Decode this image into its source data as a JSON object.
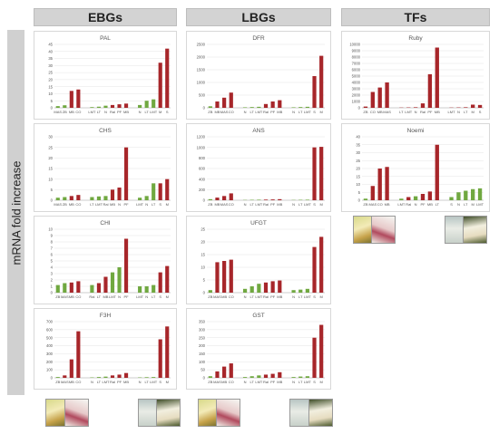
{
  "yaxis_label": "mRNA fold increase",
  "groups": [
    {
      "label": "EBGs"
    },
    {
      "label": "LBGs"
    },
    {
      "label": "TFs"
    }
  ],
  "flowers": [
    "rose-flower-yellow-icon",
    "rose-flower-pink-icon",
    "rose-flower-white-icon",
    "rose-flower-cream-icon"
  ],
  "colors": {
    "green": "#70a840",
    "red": "#a7262a",
    "axis": "#bfbfbf",
    "grid": "#e4e4e4",
    "text": "#555555"
  },
  "chart_data": [
    {
      "type": "bar",
      "title": "PAL",
      "ylim": [
        0,
        45
      ],
      "yticks": [
        0,
        5,
        10,
        15,
        20,
        25,
        30,
        35,
        40,
        45
      ],
      "categories": [
        "MAS",
        "ZB",
        "MB",
        "CO",
        "",
        "LMT",
        "LT",
        "N",
        "Ral",
        "PF",
        "MB",
        "",
        "N",
        "LT",
        "LMT",
        "M",
        "S"
      ],
      "values": [
        1.2,
        1.8,
        12,
        13,
        0,
        0.5,
        0.8,
        1.5,
        2.0,
        2.5,
        3,
        0,
        2,
        5,
        6,
        32,
        42
      ],
      "colors": [
        "g",
        "g",
        "r",
        "r",
        "x",
        "g",
        "g",
        "g",
        "r",
        "r",
        "r",
        "x",
        "g",
        "g",
        "g",
        "r",
        "r"
      ]
    },
    {
      "type": "bar",
      "title": "DFR",
      "ylim": [
        0,
        2500
      ],
      "yticks": [
        0,
        500,
        1000,
        1500,
        2000,
        2500
      ],
      "categories": [
        "ZB",
        "MB",
        "MAS",
        "CO",
        "",
        "N",
        "LT",
        "LMT",
        "Ral",
        "PF",
        "MB",
        "",
        "N",
        "LT",
        "LMT",
        "S",
        "M"
      ],
      "values": [
        60,
        250,
        400,
        600,
        0,
        20,
        30,
        40,
        150,
        250,
        300,
        0,
        20,
        30,
        40,
        1250,
        2050
      ],
      "colors": [
        "g",
        "r",
        "r",
        "r",
        "x",
        "g",
        "g",
        "g",
        "r",
        "r",
        "r",
        "x",
        "g",
        "g",
        "g",
        "r",
        "r"
      ]
    },
    {
      "type": "bar",
      "title": "Ruby",
      "ylim": [
        0,
        10000
      ],
      "yticks": [
        0,
        1000,
        2000,
        3000,
        4000,
        5000,
        6000,
        7000,
        8000,
        9000,
        10000
      ],
      "categories": [
        "ZB",
        "CO",
        "MB",
        "MAS",
        "",
        "LT",
        "LMT",
        "N",
        "Ral",
        "PF",
        "MB",
        "",
        "LMT",
        "N",
        "LT",
        "M",
        "S"
      ],
      "values": [
        200,
        2500,
        3200,
        4000,
        0,
        40,
        60,
        90,
        700,
        5300,
        9500,
        0,
        40,
        60,
        90,
        500,
        450
      ],
      "colors": [
        "r",
        "r",
        "r",
        "r",
        "x",
        "r",
        "r",
        "r",
        "r",
        "r",
        "r",
        "x",
        "r",
        "r",
        "r",
        "r",
        "r"
      ]
    },
    {
      "type": "bar",
      "title": "CHS",
      "ylim": [
        0,
        30
      ],
      "yticks": [
        0,
        5,
        10,
        15,
        20,
        25,
        30
      ],
      "categories": [
        "MAS",
        "ZB",
        "MB",
        "CO",
        "",
        "LT",
        "LMT",
        "Ral",
        "MB",
        "N",
        "PF",
        "",
        "LMT",
        "N",
        "LT",
        "S",
        "M"
      ],
      "values": [
        1.2,
        1.5,
        2,
        2.5,
        0,
        1.5,
        1.8,
        2,
        5,
        6,
        25,
        0,
        1.2,
        2,
        8,
        8,
        10
      ],
      "colors": [
        "g",
        "g",
        "r",
        "r",
        "x",
        "g",
        "g",
        "g",
        "r",
        "r",
        "r",
        "x",
        "g",
        "g",
        "g",
        "r",
        "r"
      ]
    },
    {
      "type": "bar",
      "title": "ANS",
      "ylim": [
        0,
        1200
      ],
      "yticks": [
        0,
        200,
        400,
        600,
        800,
        1000,
        1200
      ],
      "categories": [
        "ZB",
        "MB",
        "MAS",
        "CO",
        "",
        "N",
        "LT",
        "LMT",
        "Ral",
        "PF",
        "MB",
        "",
        "N",
        "LT",
        "LMT",
        "S",
        "M"
      ],
      "values": [
        20,
        50,
        80,
        130,
        0,
        5,
        8,
        10,
        12,
        15,
        20,
        0,
        5,
        8,
        10,
        1000,
        1010
      ],
      "colors": [
        "g",
        "r",
        "r",
        "r",
        "x",
        "g",
        "g",
        "g",
        "r",
        "r",
        "r",
        "x",
        "g",
        "g",
        "g",
        "r",
        "r"
      ]
    },
    {
      "type": "bar",
      "title": "Noemi",
      "ylim": [
        0,
        40
      ],
      "yticks": [
        0,
        5,
        10,
        15,
        20,
        25,
        30,
        35,
        40
      ],
      "categories": [
        "ZB",
        "MAS",
        "CO",
        "MB",
        "",
        "LMT",
        "Ral",
        "N",
        "PF",
        "MB",
        "LT",
        "",
        "S",
        "N",
        "LT",
        "M",
        "LMT"
      ],
      "values": [
        1,
        9,
        20,
        21,
        0,
        1,
        2,
        2.5,
        4,
        5.5,
        35,
        0,
        2,
        5,
        6,
        7,
        7.5
      ],
      "colors": [
        "g",
        "r",
        "r",
        "r",
        "x",
        "g",
        "r",
        "g",
        "r",
        "r",
        "r",
        "x",
        "g",
        "g",
        "g",
        "g",
        "g"
      ]
    },
    {
      "type": "bar",
      "title": "CHI",
      "ylim": [
        0,
        10
      ],
      "yticks": [
        0,
        1,
        2,
        3,
        4,
        5,
        6,
        7,
        8,
        9,
        10
      ],
      "categories": [
        "ZB",
        "MAS",
        "MB",
        "CO",
        "",
        "Ral",
        "LT",
        "MB",
        "LMT",
        "N",
        "PF",
        "",
        "LMT",
        "N",
        "LT",
        "S",
        "M"
      ],
      "values": [
        1.2,
        1.5,
        1.6,
        1.8,
        0,
        1.2,
        1.5,
        2.5,
        3.2,
        4,
        8.5,
        0,
        1,
        1,
        1.2,
        3.2,
        4.2
      ],
      "colors": [
        "g",
        "g",
        "r",
        "r",
        "x",
        "g",
        "r",
        "r",
        "g",
        "g",
        "r",
        "x",
        "g",
        "g",
        "g",
        "r",
        "r"
      ]
    },
    {
      "type": "bar",
      "title": "UFGT",
      "ylim": [
        0,
        25
      ],
      "yticks": [
        0,
        5,
        10,
        15,
        20,
        25
      ],
      "categories": [
        "ZB",
        "MAS",
        "MB",
        "CO",
        "",
        "N",
        "LT",
        "LMT",
        "Ral",
        "PF",
        "MB",
        "",
        "N",
        "LT",
        "LMT",
        "S",
        "M"
      ],
      "values": [
        1,
        12,
        12.5,
        13,
        0,
        1.5,
        2.5,
        3.5,
        4,
        4.5,
        4.8,
        0,
        1,
        1.2,
        1.5,
        18,
        22
      ],
      "colors": [
        "g",
        "r",
        "r",
        "r",
        "x",
        "g",
        "g",
        "g",
        "r",
        "r",
        "r",
        "x",
        "g",
        "g",
        "g",
        "r",
        "r"
      ]
    },
    {
      "type": "bar",
      "title": "F3H",
      "ylim": [
        0,
        700
      ],
      "yticks": [
        0,
        100,
        200,
        300,
        400,
        500,
        600,
        700
      ],
      "categories": [
        "ZB",
        "MAS",
        "MB",
        "CO",
        "",
        "N",
        "LT",
        "LMT",
        "Ral",
        "PF",
        "MB",
        "",
        "N",
        "LT",
        "LMT",
        "S",
        "M"
      ],
      "values": [
        10,
        30,
        230,
        580,
        0,
        5,
        10,
        15,
        30,
        40,
        60,
        0,
        5,
        8,
        10,
        480,
        640
      ],
      "colors": [
        "g",
        "r",
        "r",
        "r",
        "x",
        "g",
        "g",
        "g",
        "r",
        "r",
        "r",
        "x",
        "g",
        "g",
        "g",
        "r",
        "r"
      ]
    },
    {
      "type": "bar",
      "title": "GST",
      "ylim": [
        0,
        350
      ],
      "yticks": [
        0,
        50,
        100,
        150,
        200,
        250,
        300,
        350
      ],
      "categories": [
        "ZB",
        "MAS",
        "MB",
        "CO",
        "",
        "N",
        "LT",
        "LMT",
        "Ral",
        "PF",
        "MB",
        "",
        "N",
        "LT",
        "LMT",
        "S",
        "M"
      ],
      "values": [
        10,
        40,
        70,
        90,
        0,
        5,
        10,
        15,
        20,
        25,
        35,
        0,
        5,
        8,
        10,
        250,
        330
      ],
      "colors": [
        "g",
        "r",
        "r",
        "r",
        "x",
        "g",
        "g",
        "g",
        "r",
        "r",
        "r",
        "x",
        "g",
        "g",
        "g",
        "r",
        "r"
      ]
    }
  ]
}
